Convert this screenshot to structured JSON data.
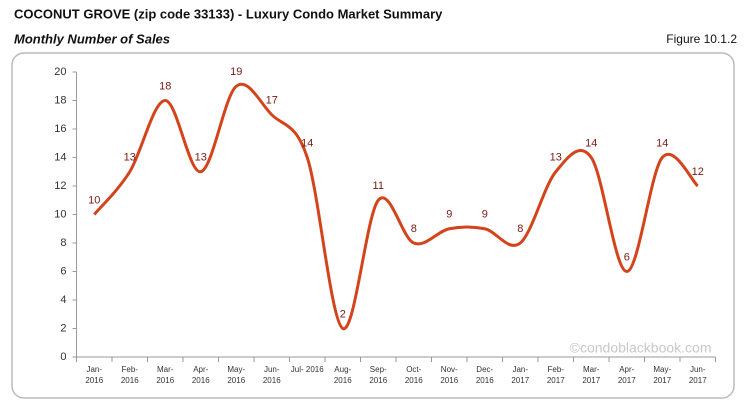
{
  "header": {
    "title": "COCONUT GROVE (zip code 33133) - Luxury Condo Market Summary",
    "subtitle": "Monthly Number of Sales",
    "figure": "Figure 10.1.2"
  },
  "chart_data": {
    "type": "line",
    "categories": [
      [
        "Jan-",
        "2016"
      ],
      [
        "Feb-",
        "2016"
      ],
      [
        "Mar-",
        "2016"
      ],
      [
        "Apr-",
        "2016"
      ],
      [
        "May-",
        "2016"
      ],
      [
        "Jun-",
        "2016"
      ],
      [
        "Jul- 2016"
      ],
      [
        "Aug-",
        "2016"
      ],
      [
        "Sep-",
        "2016"
      ],
      [
        "Oct-",
        "2016"
      ],
      [
        "Nov-",
        "2016"
      ],
      [
        "Dec-",
        "2016"
      ],
      [
        "Jan-",
        "2017"
      ],
      [
        "Feb-",
        "2017"
      ],
      [
        "Mar-",
        "2017"
      ],
      [
        "Apr-",
        "2017"
      ],
      [
        "May-",
        "2017"
      ],
      [
        "Jun-",
        "2017"
      ]
    ],
    "values": [
      10,
      13,
      18,
      13,
      19,
      17,
      14,
      2,
      11,
      8,
      9,
      9,
      8,
      13,
      14,
      6,
      14,
      12
    ],
    "color": "#d4441c",
    "label_color": "#7a1a12",
    "smooth": true,
    "ylim": [
      0,
      20
    ],
    "yticks": [
      0,
      2,
      4,
      6,
      8,
      10,
      12,
      14,
      16,
      18,
      20
    ],
    "watermark": "©condoblackbook.com"
  }
}
